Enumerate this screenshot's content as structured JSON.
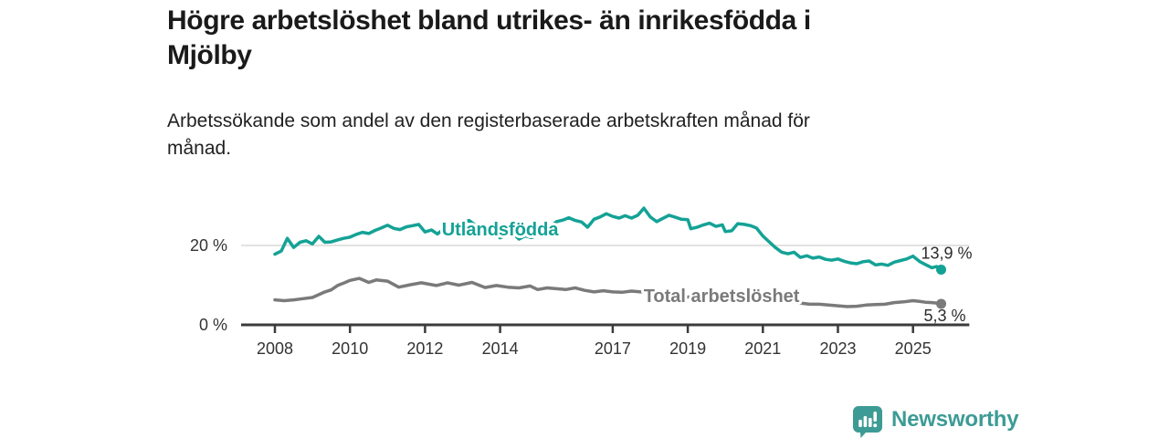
{
  "header": {
    "title_lines": [
      "Högre arbetslöshet bland utrikes- än inrikesfödda i",
      "Mjölby"
    ],
    "subtitle_lines": [
      "Arbetssökande som andel av den registerbaserade arbetskraften månad för",
      "månad."
    ]
  },
  "chart_data": {
    "type": "line",
    "title": "Högre arbetslöshet bland utrikes- än inrikesfödda i Mjölby",
    "subtitle": "Arbetssökande som andel av den registerbaserade arbetskraften månad för månad.",
    "unit": "%",
    "xlim": [
      2007.1,
      2026.5
    ],
    "ylim": [
      0,
      31
    ],
    "grid": "horizontal, only at 20 %",
    "legend_position": "inline labels on lines",
    "yticks": [
      {
        "value": 0,
        "label": "0 %"
      },
      {
        "value": 20,
        "label": "20 %"
      }
    ],
    "xticks": [
      {
        "value": 2008,
        "label": "2008"
      },
      {
        "value": 2010,
        "label": "2010"
      },
      {
        "value": 2012,
        "label": "2012"
      },
      {
        "value": 2014,
        "label": "2014"
      },
      {
        "value": 2017,
        "label": "2017"
      },
      {
        "value": 2019,
        "label": "2019"
      },
      {
        "value": 2021,
        "label": "2021"
      },
      {
        "value": 2023,
        "label": "2023"
      },
      {
        "value": 2025,
        "label": "2025"
      }
    ],
    "series": [
      {
        "name": "Utlandsfödda",
        "color": "#14a296",
        "end_label": "13,9 %",
        "last_value": 13.9,
        "label_pos": {
          "x": 2014.0,
          "y": 22.5
        },
        "end_label_offset": {
          "dx": 6,
          "dy": -12
        },
        "points": [
          [
            2008.0,
            17.8
          ],
          [
            2008.17,
            18.6
          ],
          [
            2008.33,
            21.8
          ],
          [
            2008.5,
            19.5
          ],
          [
            2008.67,
            20.8
          ],
          [
            2008.83,
            21.2
          ],
          [
            2009.0,
            20.4
          ],
          [
            2009.17,
            22.3
          ],
          [
            2009.33,
            20.8
          ],
          [
            2009.5,
            20.9
          ],
          [
            2009.67,
            21.4
          ],
          [
            2009.83,
            21.8
          ],
          [
            2010.0,
            22.1
          ],
          [
            2010.17,
            22.8
          ],
          [
            2010.33,
            23.3
          ],
          [
            2010.5,
            23.0
          ],
          [
            2010.67,
            23.8
          ],
          [
            2010.83,
            24.4
          ],
          [
            2011.0,
            25.1
          ],
          [
            2011.17,
            24.3
          ],
          [
            2011.33,
            24.0
          ],
          [
            2011.5,
            24.7
          ],
          [
            2011.67,
            25.0
          ],
          [
            2011.83,
            25.3
          ],
          [
            2012.0,
            23.4
          ],
          [
            2012.17,
            23.9
          ],
          [
            2012.33,
            22.9
          ],
          [
            2012.5,
            24.2
          ],
          [
            2012.67,
            22.9
          ],
          [
            2012.83,
            24.5
          ],
          [
            2013.0,
            25.5
          ],
          [
            2013.17,
            26.3
          ],
          [
            2013.33,
            25.2
          ],
          [
            2013.5,
            23.9
          ],
          [
            2013.67,
            23.4
          ],
          [
            2013.83,
            23.0
          ],
          [
            2014.0,
            21.9
          ],
          [
            2014.17,
            22.6
          ],
          [
            2014.33,
            23.2
          ],
          [
            2014.5,
            21.6
          ],
          [
            2014.67,
            22.4
          ],
          [
            2014.83,
            22.0
          ],
          [
            2015.0,
            22.5
          ],
          [
            2015.17,
            23.4
          ],
          [
            2015.33,
            24.6
          ],
          [
            2015.5,
            26.0
          ],
          [
            2015.67,
            26.4
          ],
          [
            2015.83,
            27.0
          ],
          [
            2016.0,
            26.3
          ],
          [
            2016.17,
            25.9
          ],
          [
            2016.33,
            24.6
          ],
          [
            2016.5,
            26.6
          ],
          [
            2016.67,
            27.2
          ],
          [
            2016.83,
            28.0
          ],
          [
            2017.0,
            27.3
          ],
          [
            2017.17,
            26.9
          ],
          [
            2017.33,
            27.5
          ],
          [
            2017.5,
            26.9
          ],
          [
            2017.67,
            27.6
          ],
          [
            2017.83,
            29.4
          ],
          [
            2018.0,
            27.2
          ],
          [
            2018.17,
            26.0
          ],
          [
            2018.33,
            26.8
          ],
          [
            2018.5,
            27.6
          ],
          [
            2018.67,
            27.1
          ],
          [
            2018.83,
            26.6
          ],
          [
            2019.0,
            26.5
          ],
          [
            2019.08,
            24.2
          ],
          [
            2019.25,
            24.6
          ],
          [
            2019.42,
            25.2
          ],
          [
            2019.58,
            25.6
          ],
          [
            2019.75,
            24.8
          ],
          [
            2019.92,
            25.2
          ],
          [
            2020.0,
            23.5
          ],
          [
            2020.17,
            23.7
          ],
          [
            2020.33,
            25.5
          ],
          [
            2020.5,
            25.3
          ],
          [
            2020.67,
            25.0
          ],
          [
            2020.83,
            24.4
          ],
          [
            2021.0,
            22.4
          ],
          [
            2021.17,
            20.9
          ],
          [
            2021.33,
            19.5
          ],
          [
            2021.5,
            18.3
          ],
          [
            2021.67,
            17.9
          ],
          [
            2021.83,
            18.3
          ],
          [
            2022.0,
            17.0
          ],
          [
            2022.17,
            17.4
          ],
          [
            2022.33,
            16.8
          ],
          [
            2022.5,
            17.1
          ],
          [
            2022.67,
            16.5
          ],
          [
            2022.83,
            16.3
          ],
          [
            2023.0,
            16.6
          ],
          [
            2023.17,
            16.0
          ],
          [
            2023.33,
            15.6
          ],
          [
            2023.5,
            15.4
          ],
          [
            2023.67,
            15.9
          ],
          [
            2023.83,
            16.1
          ],
          [
            2024.0,
            15.1
          ],
          [
            2024.17,
            15.3
          ],
          [
            2024.33,
            15.0
          ],
          [
            2024.5,
            15.8
          ],
          [
            2024.67,
            16.2
          ],
          [
            2024.83,
            16.6
          ],
          [
            2025.0,
            17.3
          ],
          [
            2025.17,
            16.0
          ],
          [
            2025.33,
            15.2
          ],
          [
            2025.5,
            14.4
          ],
          [
            2025.63,
            14.7
          ],
          [
            2025.75,
            13.9
          ]
        ]
      },
      {
        "name": "Total arbetslöshet",
        "color": "#7a7a7a",
        "end_label": "5,3 %",
        "last_value": 5.3,
        "label_pos": {
          "x": 2019.9,
          "y": 5.7
        },
        "end_label_offset": {
          "dx": 4,
          "dy": 19
        },
        "points": [
          [
            2008.0,
            6.3
          ],
          [
            2008.25,
            6.1
          ],
          [
            2008.5,
            6.3
          ],
          [
            2008.75,
            6.6
          ],
          [
            2009.0,
            6.9
          ],
          [
            2009.17,
            7.6
          ],
          [
            2009.33,
            8.3
          ],
          [
            2009.5,
            8.8
          ],
          [
            2009.67,
            9.9
          ],
          [
            2009.83,
            10.5
          ],
          [
            2010.0,
            11.2
          ],
          [
            2010.25,
            11.7
          ],
          [
            2010.5,
            10.7
          ],
          [
            2010.7,
            11.3
          ],
          [
            2011.0,
            11.0
          ],
          [
            2011.3,
            9.5
          ],
          [
            2011.6,
            10.1
          ],
          [
            2011.9,
            10.6
          ],
          [
            2012.3,
            9.9
          ],
          [
            2012.6,
            10.6
          ],
          [
            2012.9,
            10.0
          ],
          [
            2013.25,
            10.7
          ],
          [
            2013.6,
            9.4
          ],
          [
            2013.9,
            9.9
          ],
          [
            2014.2,
            9.5
          ],
          [
            2014.5,
            9.3
          ],
          [
            2014.8,
            9.8
          ],
          [
            2015.0,
            8.9
          ],
          [
            2015.25,
            9.3
          ],
          [
            2015.5,
            9.1
          ],
          [
            2015.75,
            8.9
          ],
          [
            2016.0,
            9.3
          ],
          [
            2016.25,
            8.7
          ],
          [
            2016.5,
            8.3
          ],
          [
            2016.75,
            8.6
          ],
          [
            2017.0,
            8.3
          ],
          [
            2017.25,
            8.2
          ],
          [
            2017.5,
            8.5
          ],
          [
            2017.75,
            8.3
          ],
          [
            2018.0,
            8.2
          ],
          [
            2018.25,
            7.9
          ],
          [
            2018.5,
            7.6
          ],
          [
            2018.75,
            7.2
          ],
          [
            2019.0,
            7.0
          ],
          [
            2019.25,
            7.4
          ],
          [
            2019.5,
            7.2
          ],
          [
            2019.75,
            7.0
          ],
          [
            2020.0,
            7.0
          ],
          [
            2020.25,
            7.3
          ],
          [
            2020.5,
            7.5
          ],
          [
            2020.75,
            6.8
          ],
          [
            2021.0,
            6.5
          ],
          [
            2021.25,
            6.4
          ],
          [
            2021.5,
            6.1
          ],
          [
            2021.75,
            5.9
          ],
          [
            2022.0,
            5.5
          ],
          [
            2022.25,
            5.2
          ],
          [
            2022.5,
            5.2
          ],
          [
            2022.75,
            5.0
          ],
          [
            2023.0,
            4.8
          ],
          [
            2023.25,
            4.6
          ],
          [
            2023.5,
            4.7
          ],
          [
            2023.75,
            5.0
          ],
          [
            2024.0,
            5.1
          ],
          [
            2024.25,
            5.2
          ],
          [
            2024.5,
            5.6
          ],
          [
            2024.75,
            5.8
          ],
          [
            2025.0,
            6.1
          ],
          [
            2025.17,
            5.9
          ],
          [
            2025.33,
            5.7
          ],
          [
            2025.5,
            5.6
          ],
          [
            2025.63,
            5.5
          ],
          [
            2025.75,
            5.3
          ]
        ]
      }
    ]
  },
  "footer": {
    "brand": "Newsworthy",
    "logo_icon": "bar-chart-speech-bubble-icon"
  },
  "colors": {
    "foreign_born_line": "#14a296",
    "total_line": "#7a7a7a",
    "axis": "#3b3b3b",
    "gridline": "#d9d9d9",
    "tick_text": "#333333",
    "title_text": "#1a1a1a",
    "brand_teal": "#3d9b95"
  }
}
